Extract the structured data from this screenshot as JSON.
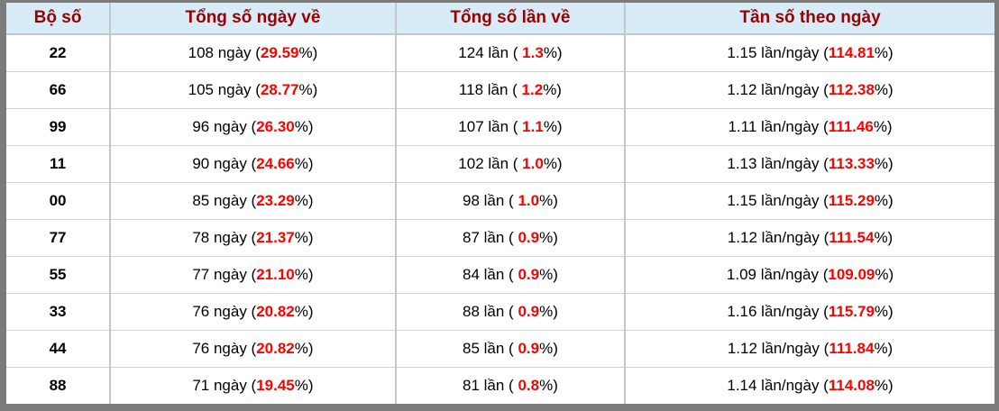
{
  "table": {
    "columns": [
      {
        "key": "pair",
        "label": "Bộ số"
      },
      {
        "key": "days",
        "label": "Tổng số ngày về"
      },
      {
        "key": "times",
        "label": "Tổng số lần về"
      },
      {
        "key": "freq",
        "label": "Tần số theo ngày"
      }
    ],
    "rows": [
      {
        "pair": "22",
        "days": {
          "pre": "108 ngày (",
          "red": "29.59",
          "post": "%)"
        },
        "times": {
          "pre": "124 lần ( ",
          "red": "1.3",
          "post": "%)"
        },
        "freq": {
          "pre": "1.15 lần/ngày (",
          "red": "114.81",
          "post": "%)"
        }
      },
      {
        "pair": "66",
        "days": {
          "pre": "105 ngày (",
          "red": "28.77",
          "post": "%)"
        },
        "times": {
          "pre": "118 lần ( ",
          "red": "1.2",
          "post": "%)"
        },
        "freq": {
          "pre": "1.12 lần/ngày (",
          "red": "112.38",
          "post": "%)"
        }
      },
      {
        "pair": "99",
        "days": {
          "pre": "96 ngày (",
          "red": "26.30",
          "post": "%)"
        },
        "times": {
          "pre": "107 lần ( ",
          "red": "1.1",
          "post": "%)"
        },
        "freq": {
          "pre": "1.11 lần/ngày (",
          "red": "111.46",
          "post": "%)"
        }
      },
      {
        "pair": "11",
        "days": {
          "pre": "90 ngày (",
          "red": "24.66",
          "post": "%)"
        },
        "times": {
          "pre": "102 lần ( ",
          "red": "1.0",
          "post": "%)"
        },
        "freq": {
          "pre": "1.13 lần/ngày (",
          "red": "113.33",
          "post": "%)"
        }
      },
      {
        "pair": "00",
        "days": {
          "pre": "85 ngày (",
          "red": "23.29",
          "post": "%)"
        },
        "times": {
          "pre": "98 lần ( ",
          "red": "1.0",
          "post": "%)"
        },
        "freq": {
          "pre": "1.15 lần/ngày (",
          "red": "115.29",
          "post": "%)"
        }
      },
      {
        "pair": "77",
        "days": {
          "pre": "78 ngày (",
          "red": "21.37",
          "post": "%)"
        },
        "times": {
          "pre": "87 lần ( ",
          "red": "0.9",
          "post": "%)"
        },
        "freq": {
          "pre": "1.12 lần/ngày (",
          "red": "111.54",
          "post": "%)"
        }
      },
      {
        "pair": "55",
        "days": {
          "pre": "77 ngày (",
          "red": "21.10",
          "post": "%)"
        },
        "times": {
          "pre": "84 lần ( ",
          "red": "0.9",
          "post": "%)"
        },
        "freq": {
          "pre": "1.09 lần/ngày (",
          "red": "109.09",
          "post": "%)"
        }
      },
      {
        "pair": "33",
        "days": {
          "pre": "76 ngày (",
          "red": "20.82",
          "post": "%)"
        },
        "times": {
          "pre": "88 lần ( ",
          "red": "0.9",
          "post": "%)"
        },
        "freq": {
          "pre": "1.16 lần/ngày (",
          "red": "115.79",
          "post": "%)"
        }
      },
      {
        "pair": "44",
        "days": {
          "pre": "76 ngày (",
          "red": "20.82",
          "post": "%)"
        },
        "times": {
          "pre": "85 lần ( ",
          "red": "0.9",
          "post": "%)"
        },
        "freq": {
          "pre": "1.12 lần/ngày (",
          "red": "111.84",
          "post": "%)"
        }
      },
      {
        "pair": "88",
        "days": {
          "pre": "71 ngày (",
          "red": "19.45",
          "post": "%)"
        },
        "times": {
          "pre": "81 lần ( ",
          "red": "0.8",
          "post": "%)"
        },
        "freq": {
          "pre": "1.14 lần/ngày (",
          "red": "114.08",
          "post": "%)"
        }
      }
    ]
  },
  "colors": {
    "header_bg": "#d8ecf7",
    "header_text": "#9b0000",
    "value_red": "#ff0000",
    "grid_line": "#c6c6c6",
    "row_line": "#d0d0d0",
    "outer_frame": "#7b7b7b"
  }
}
